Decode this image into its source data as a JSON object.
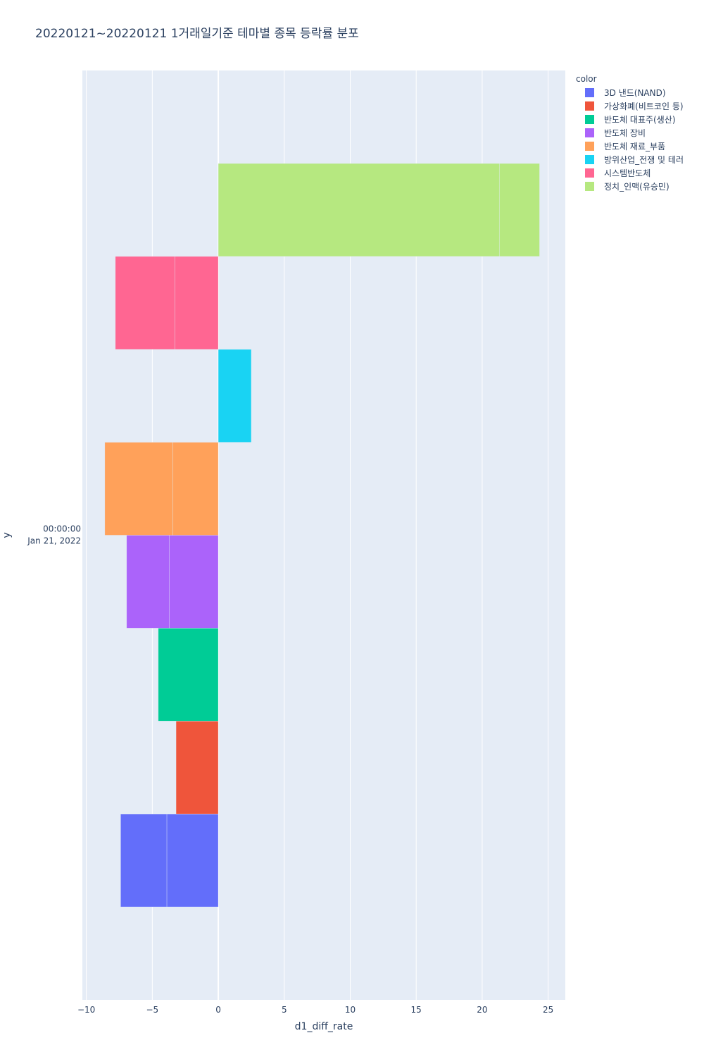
{
  "title": "20220121~20220121 1거래일기준 테마별 종목 등락률 분포",
  "legend": {
    "title": "color",
    "items": [
      {
        "label": "3D 낸드(NAND)",
        "color": "#636efa"
      },
      {
        "label": "가상화폐(비트코인 등)",
        "color": "#ef553b"
      },
      {
        "label": "반도체 대표주(생산)",
        "color": "#00cc96"
      },
      {
        "label": "반도체 장비",
        "color": "#ab63fa"
      },
      {
        "label": "반도체 재료_부품",
        "color": "#ffa15a"
      },
      {
        "label": "방위산업_전쟁 및 테러",
        "color": "#19d3f3"
      },
      {
        "label": "시스템반도체",
        "color": "#ff6692"
      },
      {
        "label": "정치_인맥(유승민)",
        "color": "#b6e880"
      }
    ]
  },
  "chart_data": {
    "type": "bar",
    "orientation": "horizontal",
    "barmode": "group, stacked segments per category",
    "xlabel": "d1_diff_rate",
    "ylabel": "y",
    "y_tick_line1": "00:00:00",
    "y_tick_line2": "Jan 21, 2022",
    "xlim": [
      -10.3,
      26.3
    ],
    "xticks": [
      -10,
      -5,
      0,
      5,
      10,
      15,
      20,
      25
    ],
    "xtick_labels": [
      "−10",
      "−5",
      "0",
      "5",
      "10",
      "15",
      "20",
      "25"
    ],
    "grid": true,
    "legend_position": "right",
    "series": [
      {
        "name": "3D 낸드(NAND)",
        "color": "#636efa",
        "segments": [
          -3.9,
          -3.5
        ]
      },
      {
        "name": "가상화폐(비트코인 등)",
        "color": "#ef553b",
        "segments": [
          -3.2
        ]
      },
      {
        "name": "반도체 대표주(생산)",
        "color": "#00cc96",
        "segments": [
          -4.55
        ]
      },
      {
        "name": "반도체 장비",
        "color": "#ab63fa",
        "segments": [
          -3.7,
          -3.25
        ]
      },
      {
        "name": "반도체 재료_부품",
        "color": "#ffa15a",
        "segments": [
          -3.45,
          -5.15
        ]
      },
      {
        "name": "방위산업_전쟁 및 테러",
        "color": "#19d3f3",
        "segments": [
          2.5
        ]
      },
      {
        "name": "시스템반도체",
        "color": "#ff6692",
        "segments": [
          -3.3,
          -4.5
        ]
      },
      {
        "name": "정치_인맥(유승민)",
        "color": "#b6e880",
        "segments": [
          21.3,
          3.05
        ]
      }
    ]
  }
}
